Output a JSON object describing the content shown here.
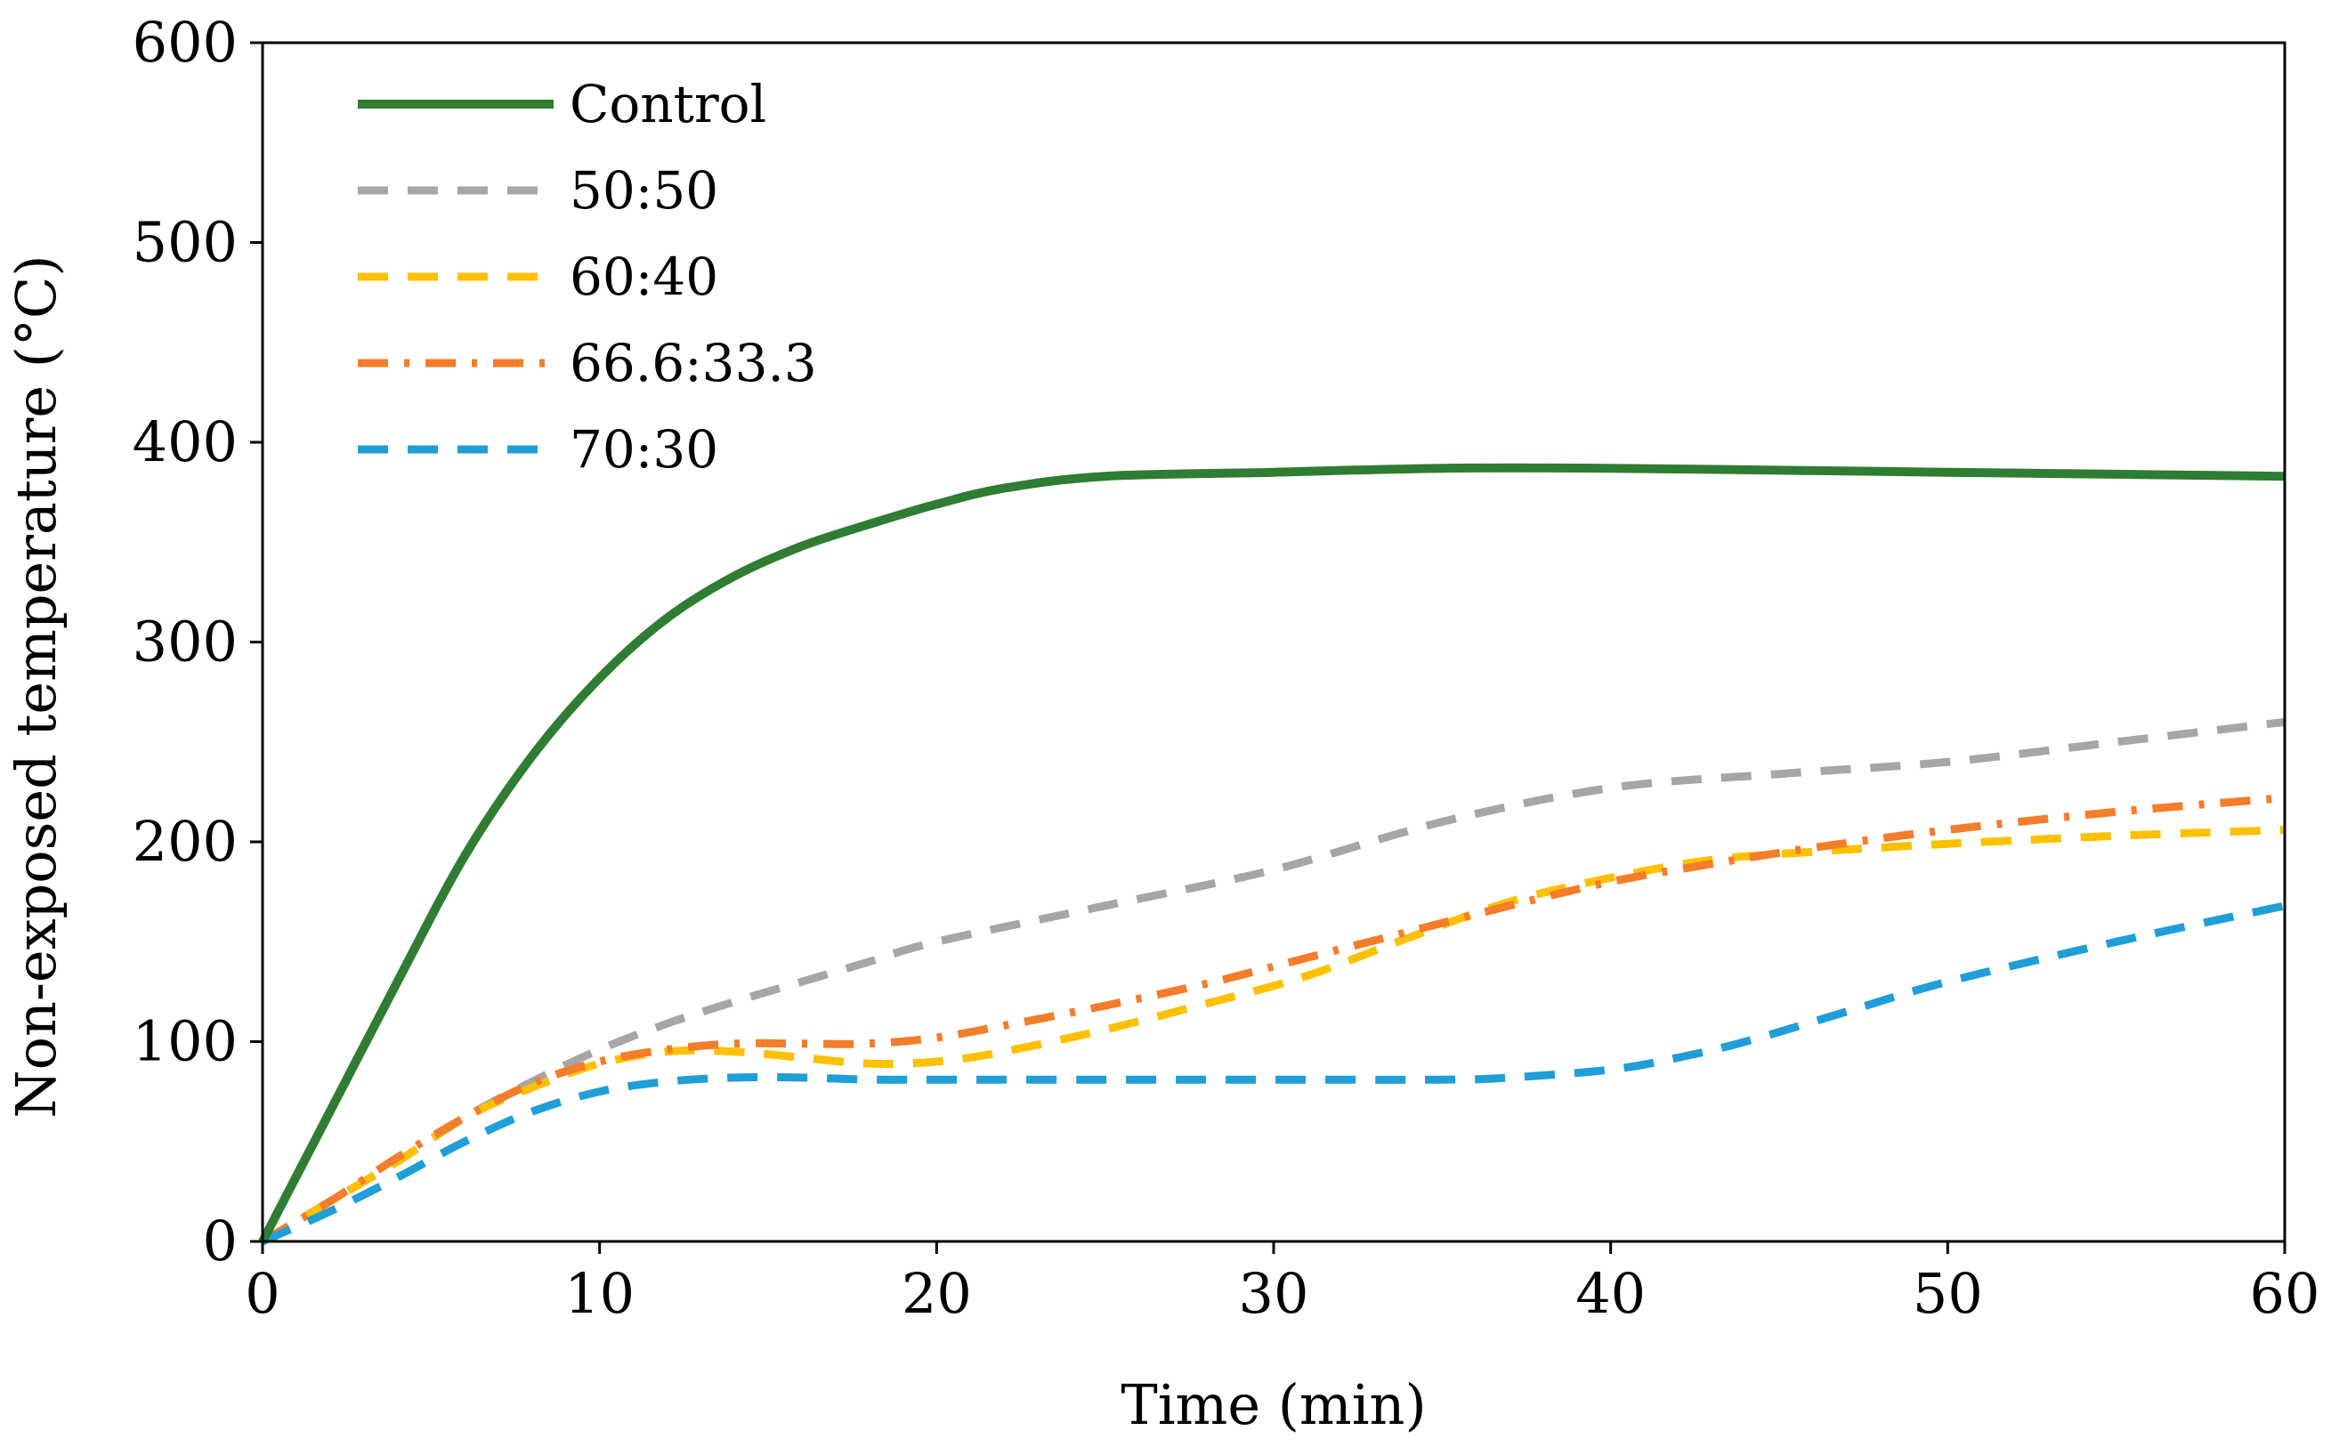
{
  "chart_data": {
    "type": "line",
    "title": "",
    "xlabel": "Time (min)",
    "ylabel": "Non-exposed temperature (°C)",
    "xlim": [
      0,
      60
    ],
    "ylim": [
      0,
      600
    ],
    "xticks": [
      0,
      10,
      20,
      30,
      40,
      50,
      60
    ],
    "yticks": [
      0,
      100,
      200,
      300,
      400,
      500,
      600
    ],
    "xtick_labels": [
      "0",
      "10",
      "20",
      "30",
      "40",
      "50",
      "60"
    ],
    "ytick_labels": [
      "0",
      "100",
      "200",
      "300",
      "400",
      "500",
      "600"
    ],
    "grid": false,
    "legend_position": "top-left",
    "series": [
      {
        "name": "Control",
        "color": "#2e7d32",
        "style": "solid",
        "x": [
          0,
          2,
          4,
          6,
          8,
          10,
          12,
          14,
          16,
          18,
          20,
          22,
          25,
          30,
          35,
          40,
          45,
          50,
          55,
          60
        ],
        "y": [
          0,
          65,
          130,
          193,
          243,
          282,
          312,
          333,
          348,
          359,
          369,
          377,
          383,
          385,
          387,
          387,
          386,
          385,
          384,
          383
        ]
      },
      {
        "name": "50:50",
        "color": "#a6a6a6",
        "style": "dash",
        "x": [
          0,
          2,
          4,
          6,
          8,
          10,
          12,
          14,
          16,
          18,
          20,
          25,
          30,
          35,
          40,
          45,
          50,
          55,
          60
        ],
        "y": [
          0,
          20,
          40,
          62,
          80,
          96,
          109,
          120,
          130,
          140,
          150,
          168,
          186,
          210,
          227,
          234,
          240,
          250,
          260
        ]
      },
      {
        "name": "60:40",
        "color": "#ffc000",
        "style": "dash",
        "x": [
          0,
          2,
          4,
          6,
          8,
          10,
          12,
          14,
          16,
          18,
          20,
          22,
          25,
          28,
          31,
          34,
          37,
          40,
          43,
          46,
          50,
          55,
          60
        ],
        "y": [
          0,
          20,
          40,
          62,
          77,
          89,
          95,
          95,
          92,
          89,
          90,
          95,
          106,
          119,
          133,
          152,
          170,
          182,
          191,
          195,
          199,
          203,
          206
        ]
      },
      {
        "name": "66.6:33.3",
        "color": "#f47d2a",
        "style": "dashdot",
        "x": [
          0,
          2,
          4,
          6,
          8,
          10,
          12,
          14,
          16,
          18,
          20,
          22,
          25,
          28,
          31,
          34,
          37,
          40,
          43,
          46,
          50,
          55,
          60
        ],
        "y": [
          0,
          20,
          42,
          62,
          79,
          90,
          96,
          99,
          99,
          99,
          102,
          108,
          118,
          129,
          142,
          155,
          168,
          180,
          189,
          197,
          206,
          215,
          222
        ]
      },
      {
        "name": "70:30",
        "color": "#1f9ed8",
        "style": "dash",
        "x": [
          0,
          2,
          4,
          6,
          8,
          10,
          12,
          14,
          16,
          18,
          20,
          25,
          30,
          35,
          37,
          40,
          42,
          44,
          47,
          50,
          55,
          60
        ],
        "y": [
          0,
          15,
          32,
          50,
          65,
          75,
          80,
          82,
          82,
          81,
          81,
          81,
          81,
          81,
          82,
          86,
          92,
          100,
          115,
          130,
          150,
          168
        ]
      }
    ]
  }
}
